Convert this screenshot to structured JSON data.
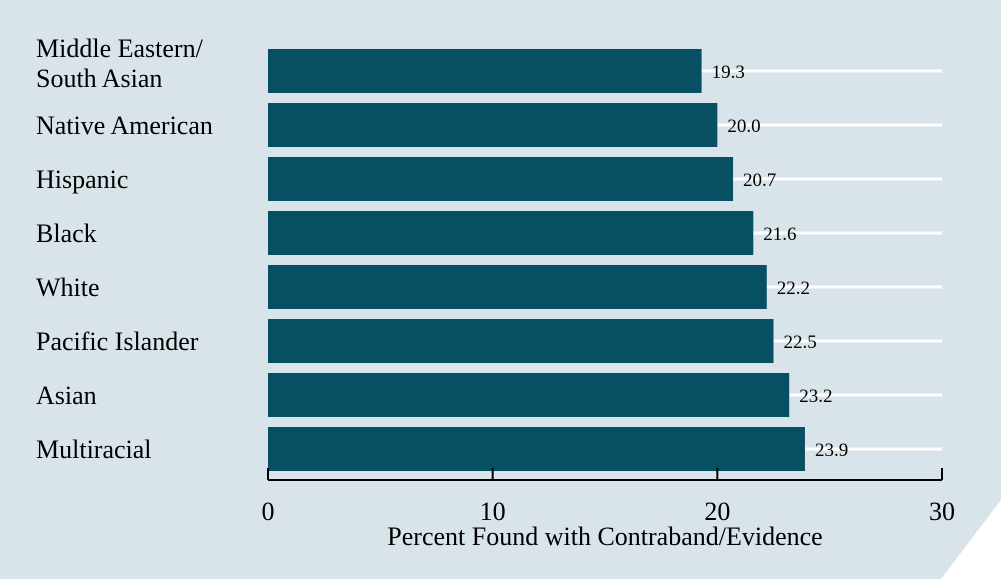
{
  "chart_data": {
    "type": "bar",
    "orientation": "horizontal",
    "categories": [
      [
        "Middle Eastern/",
        "South Asian"
      ],
      [
        "Native American"
      ],
      [
        "Hispanic"
      ],
      [
        "Black"
      ],
      [
        "White"
      ],
      [
        "Pacific Islander"
      ],
      [
        "Asian"
      ],
      [
        "Multiracial"
      ]
    ],
    "values": [
      19.3,
      20.0,
      20.7,
      21.6,
      22.2,
      22.5,
      23.2,
      23.9
    ],
    "value_labels": [
      "19.3",
      "20.0",
      "20.7",
      "21.6",
      "22.2",
      "22.5",
      "23.2",
      "23.9"
    ],
    "xlabel": "Percent Found with Contraband/Evidence",
    "ylabel": "",
    "xlim": [
      0,
      30
    ],
    "xticks": [
      0,
      10,
      20,
      30
    ],
    "xtick_labels": [
      "0",
      "10",
      "20",
      "30"
    ],
    "grid": true,
    "colors": {
      "bar": "#074f62",
      "panel_background": "#d8e4ea",
      "gridline": "#ffffff",
      "text": "#000000"
    }
  }
}
